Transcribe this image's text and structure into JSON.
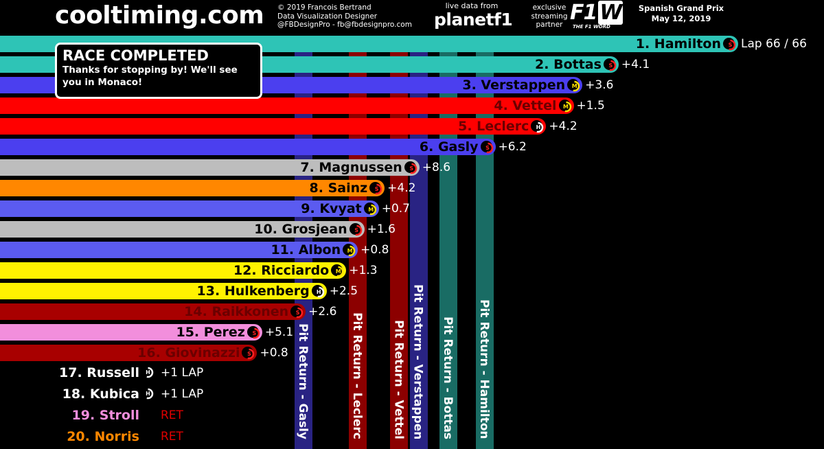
{
  "header": {
    "logo": "cooltiming.com",
    "credits": [
      "© 2019 Francois Bertrand",
      "Data Visualization Designer",
      "@FBDesignPro - fb@fbdesignpro.com"
    ],
    "live_small": "live data from",
    "live_brand": "planetf1",
    "partner": [
      "exclusive",
      "streaming",
      "partner"
    ],
    "partner_brand": "F1",
    "partner_brand_w": "W",
    "partner_sub": "THE F1 WORD",
    "event": "Spanish Grand Prix",
    "date": "May 12, 2019"
  },
  "status": {
    "title": "RACE COMPLETED",
    "message": "Thanks for stopping by! We'll see you in Monaco!"
  },
  "lap": "Lap 66 / 66",
  "colors": {
    "mercedes": "#2EC4B6",
    "redbull": "#4B3FEF",
    "ferrari": "#FF0000",
    "toro_rosso": "#5B5BF0",
    "haas": "#BDBDBD",
    "mclaren": "#FF8700",
    "renault": "#FFF200",
    "alfa": "#A80000",
    "racing_point": "#F28EDC",
    "williams": "#FFFFFF"
  },
  "drivers": [
    {
      "pos": 1,
      "label": "1. Hamilton",
      "gap": "",
      "team": "mercedes",
      "tyre": "soft",
      "progress": 1.0
    },
    {
      "pos": 2,
      "label": "2. Bottas",
      "gap": "+4.1",
      "team": "mercedes",
      "tyre": "soft",
      "progress": 0.835
    },
    {
      "pos": 3,
      "label": "3. Verstappen",
      "gap": "+3.6",
      "team": "redbull",
      "tyre": "medium",
      "progress": 0.785
    },
    {
      "pos": 4,
      "label": "4. Vettel",
      "gap": "+1.5",
      "team": "ferrari",
      "tyre": "medium",
      "progress": 0.773
    },
    {
      "pos": 5,
      "label": "5. Leclerc",
      "gap": "+4.2",
      "team": "ferrari",
      "tyre": "hard",
      "progress": 0.735
    },
    {
      "pos": 6,
      "label": "6. Gasly",
      "gap": "+6.2",
      "team": "redbull",
      "tyre": "soft",
      "progress": 0.665
    },
    {
      "pos": 7,
      "label": "7. Magnussen",
      "gap": "+8.6",
      "team": "haas",
      "tyre": "soft",
      "progress": 0.56
    },
    {
      "pos": 8,
      "label": "8. Sainz",
      "gap": "+4.2",
      "team": "mclaren",
      "tyre": "soft",
      "progress": 0.512
    },
    {
      "pos": 9,
      "label": "9. Kvyat",
      "gap": "+0.7",
      "team": "toro_rosso",
      "tyre": "medium",
      "progress": 0.504
    },
    {
      "pos": 10,
      "label": "10. Grosjean",
      "gap": "+1.6",
      "team": "haas",
      "tyre": "soft",
      "progress": 0.484
    },
    {
      "pos": 11,
      "label": "11. Albon",
      "gap": "+0.8",
      "team": "toro_rosso",
      "tyre": "medium",
      "progress": 0.475
    },
    {
      "pos": 12,
      "label": "12. Ricciardo",
      "gap": "+1.3",
      "team": "renault",
      "tyre": "medium",
      "progress": 0.459
    },
    {
      "pos": 13,
      "label": "13. Hulkenberg",
      "gap": "+2.5",
      "team": "renault",
      "tyre": "hard",
      "progress": 0.432
    },
    {
      "pos": 14,
      "label": "14. Raikkonen",
      "gap": "+2.6",
      "team": "alfa",
      "tyre": "soft",
      "progress": 0.403
    },
    {
      "pos": 15,
      "label": "15. Perez",
      "gap": "+5.1",
      "team": "racing_point",
      "tyre": "soft",
      "progress": 0.343
    },
    {
      "pos": 16,
      "label": "16. Giovinazzi",
      "gap": "+0.8",
      "team": "alfa",
      "tyre": "soft",
      "progress": 0.336
    }
  ],
  "unclassified": [
    {
      "label": "17. Russell",
      "gap": "+1 LAP",
      "team": "williams",
      "tyre": "hard",
      "gap_color": "#FFFFFF"
    },
    {
      "label": "18. Kubica",
      "gap": "+1 LAP",
      "team": "williams",
      "tyre": "hard",
      "gap_color": "#FFFFFF"
    },
    {
      "label": "19. Stroll",
      "gap": "RET",
      "team": "racing_point",
      "tyre": "",
      "gap_color": "#E00000"
    },
    {
      "label": "20. Norris",
      "gap": "RET",
      "team": "mclaren",
      "tyre": "",
      "gap_color": "#E00000"
    }
  ],
  "pit_returns": [
    {
      "label": "Pit Return - Gasly",
      "team": "redbull",
      "progress": 0.4
    },
    {
      "label": "Pit Return - Leclerc",
      "team": "ferrari",
      "progress": 0.475
    },
    {
      "label": "Pit Return - Vettel",
      "team": "ferrari",
      "progress": 0.532
    },
    {
      "label": "Pit Return - Verstappen",
      "team": "redbull",
      "progress": 0.559
    },
    {
      "label": "Pit Return - Bottas",
      "team": "mercedes",
      "progress": 0.6
    },
    {
      "label": "Pit Return - Hamilton",
      "team": "mercedes",
      "progress": 0.65
    }
  ]
}
